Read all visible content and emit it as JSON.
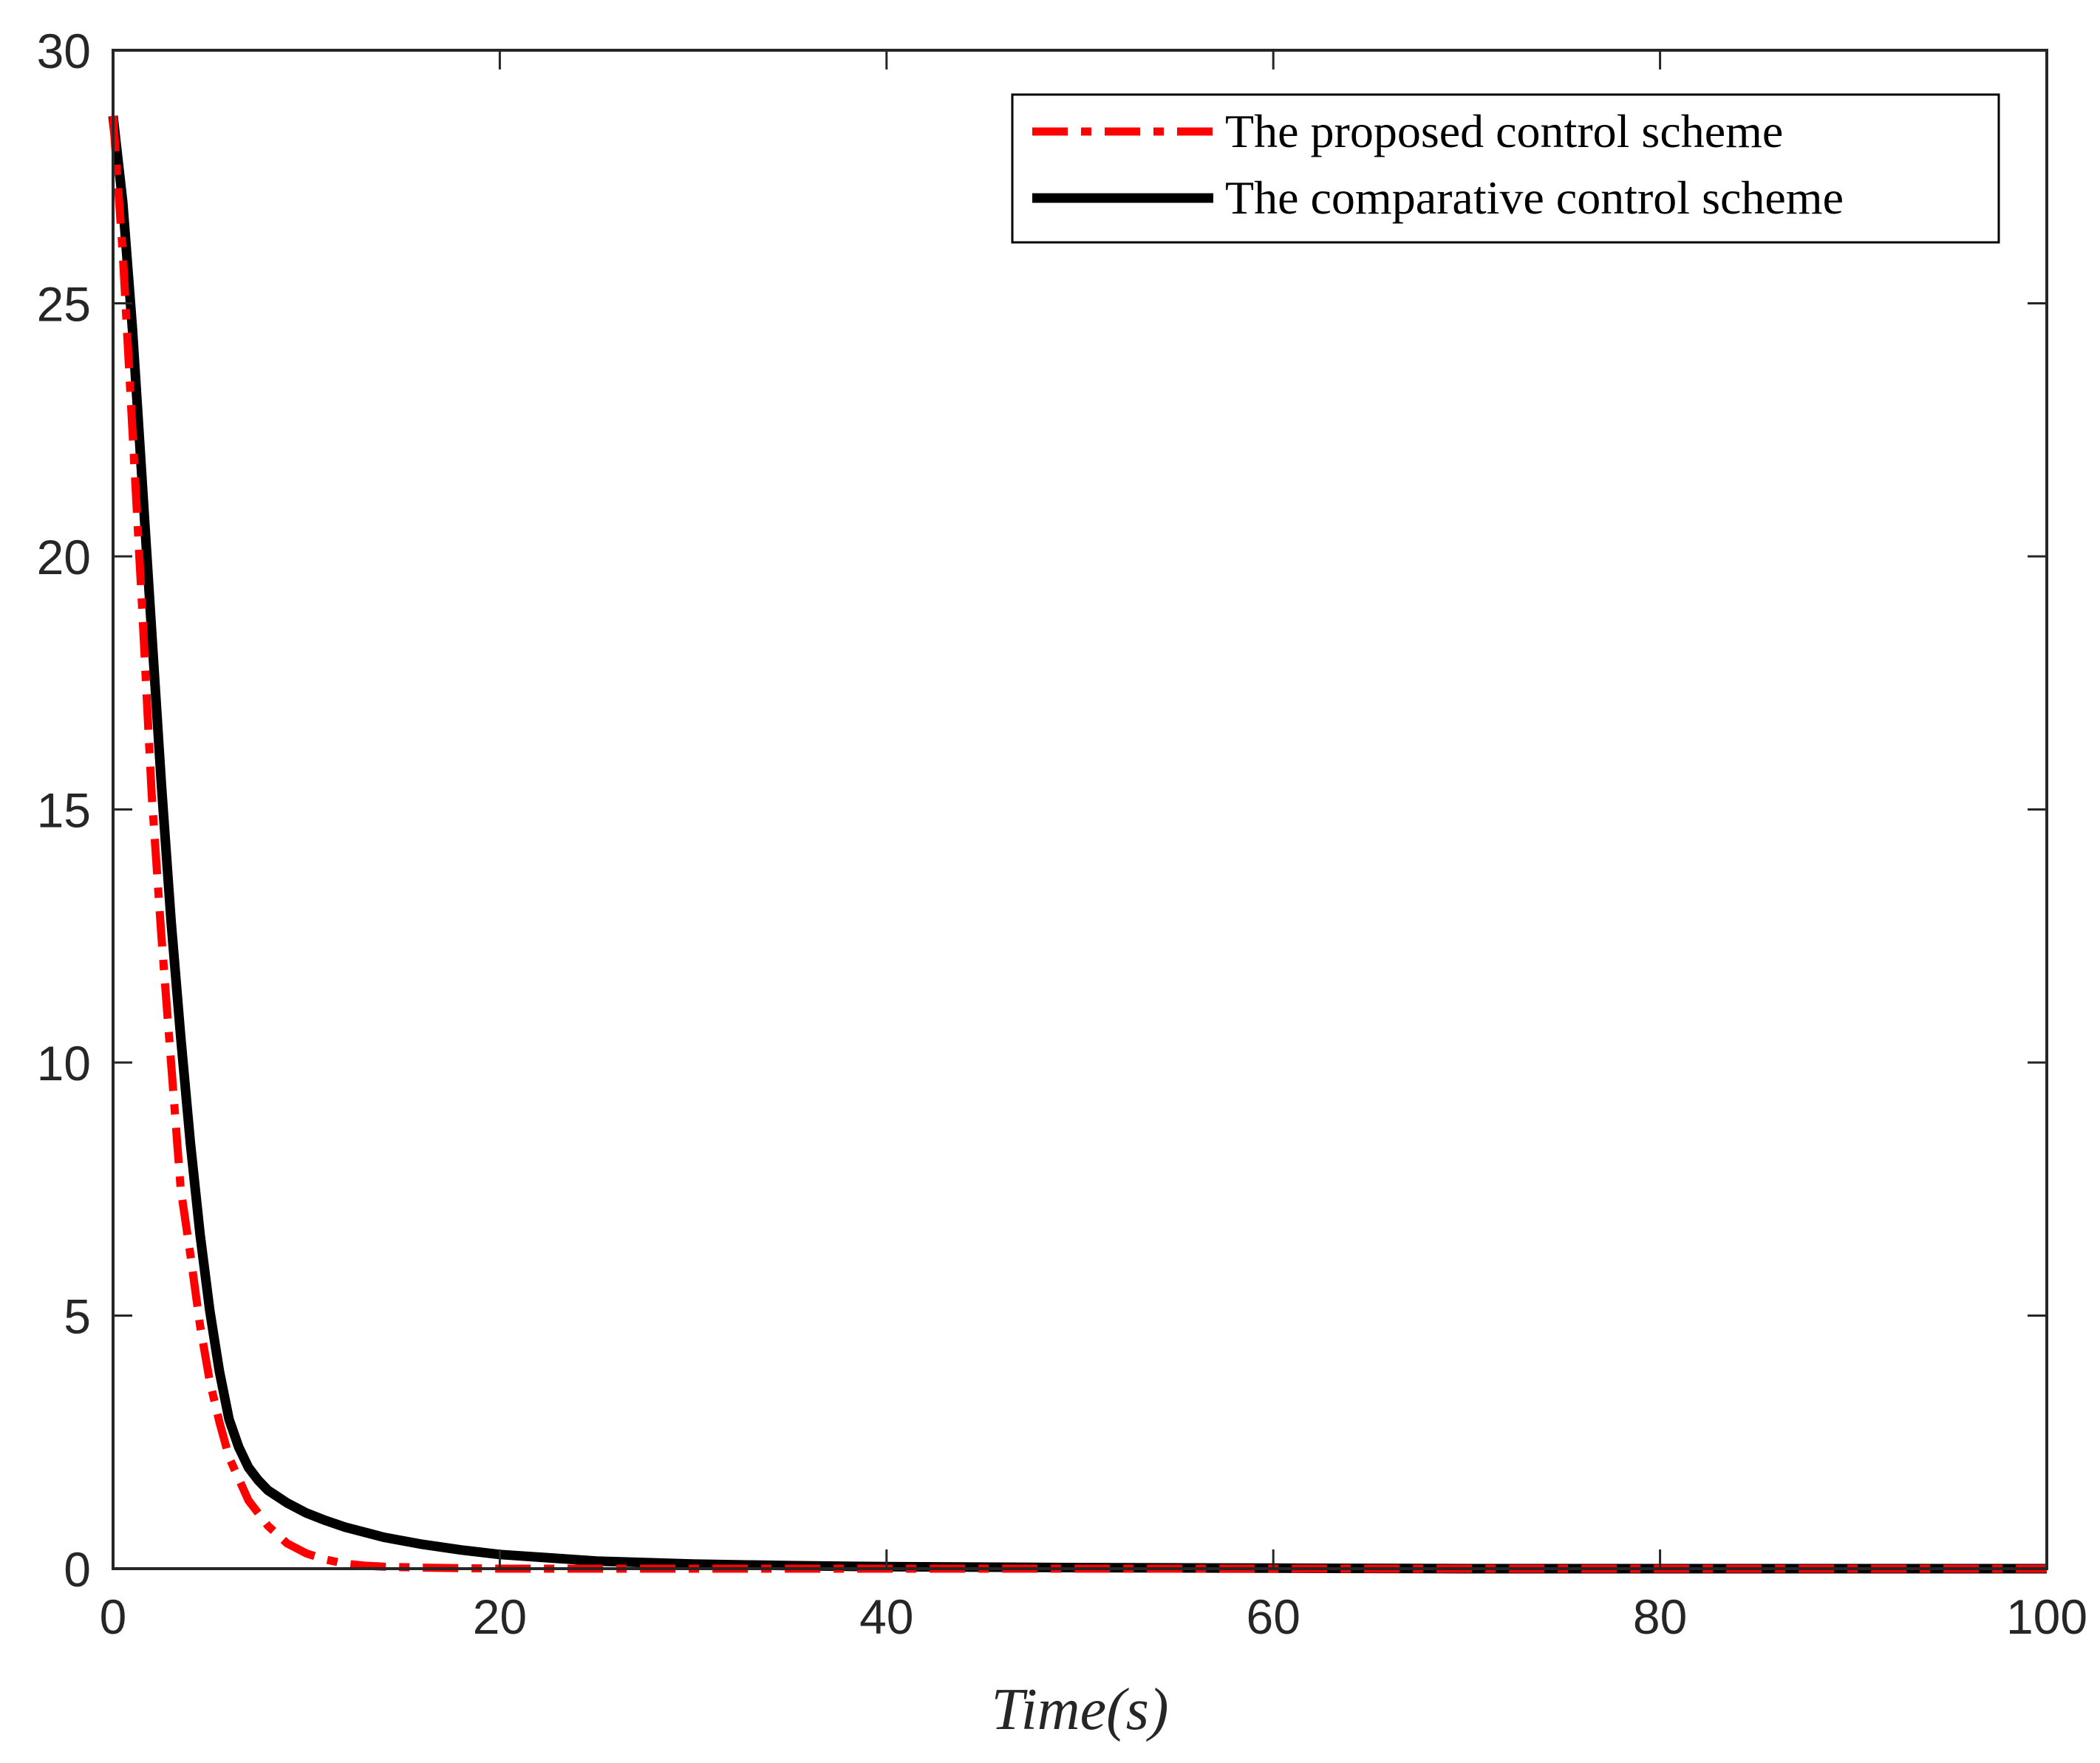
{
  "chart_data": {
    "type": "line",
    "xlabel": "Time(s)",
    "ylabel": "",
    "xlim": [
      0,
      100
    ],
    "ylim": [
      0,
      30
    ],
    "xticks": [
      0,
      20,
      40,
      60,
      80,
      100
    ],
    "yticks": [
      0,
      5,
      10,
      15,
      20,
      25,
      30
    ],
    "grid": false,
    "legend_position": "top-right",
    "series": [
      {
        "name": "The proposed control scheme",
        "color": "#ff0000",
        "line_style": "dash-dot",
        "x": [
          0,
          0.5,
          1,
          1.5,
          2,
          2.5,
          3,
          3.5,
          4,
          4.5,
          5,
          5.5,
          6,
          7,
          8,
          9,
          10,
          11,
          12,
          13,
          14,
          16,
          18,
          20,
          25,
          30,
          40,
          50,
          60,
          70,
          80,
          90,
          100
        ],
        "y": [
          28.7,
          26.0,
          22.5,
          19.0,
          15.3,
          12.5,
          10.0,
          7.5,
          6.2,
          4.8,
          3.7,
          2.9,
          2.2,
          1.35,
          0.85,
          0.5,
          0.3,
          0.18,
          0.1,
          0.06,
          0.04,
          0.02,
          0.01,
          0.0,
          0.0,
          0.0,
          0.0,
          0.0,
          0.0,
          0.0,
          0.0,
          0.0,
          0.0
        ]
      },
      {
        "name": "The comparative control scheme",
        "color": "#000000",
        "line_style": "solid",
        "x": [
          0,
          0.5,
          1,
          1.5,
          2,
          2.5,
          3,
          3.5,
          4,
          4.5,
          5,
          5.5,
          6,
          6.5,
          7,
          7.5,
          8,
          9,
          10,
          11,
          12,
          14,
          16,
          18,
          20,
          25,
          30,
          35,
          40,
          50,
          60,
          70,
          80,
          90,
          100
        ],
        "y": [
          28.7,
          27.0,
          24.5,
          21.5,
          18.5,
          15.5,
          12.8,
          10.5,
          8.4,
          6.6,
          5.1,
          3.9,
          2.95,
          2.4,
          2.0,
          1.75,
          1.55,
          1.3,
          1.1,
          0.95,
          0.82,
          0.62,
          0.48,
          0.37,
          0.28,
          0.15,
          0.09,
          0.06,
          0.04,
          0.02,
          0.01,
          0.0,
          0.0,
          0.0,
          0.0
        ]
      }
    ]
  }
}
